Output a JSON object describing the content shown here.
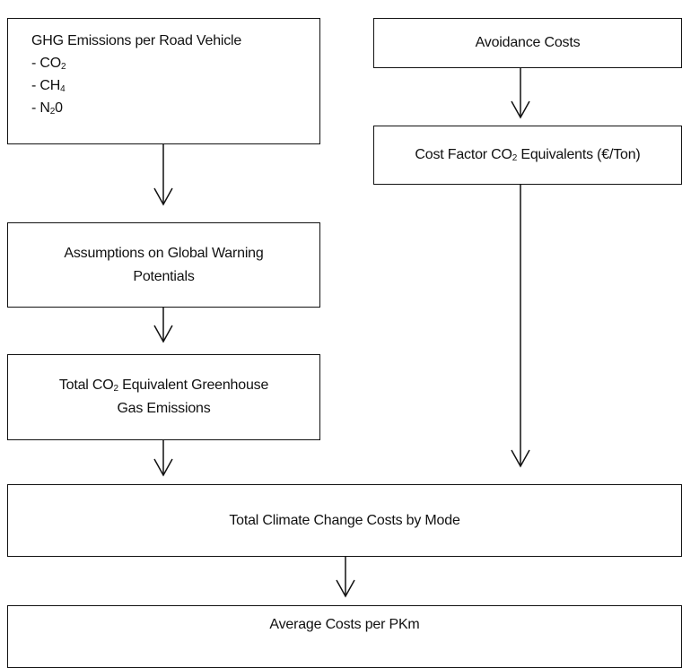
{
  "nodes": [
    {
      "lines": [
        [
          {
            "text": "GHG Emissions per Road Vehicle"
          }
        ],
        [
          {
            "text": "- CO"
          },
          {
            "sub": "2"
          }
        ],
        [
          {
            "text": "- CH"
          },
          {
            "sub": "4"
          }
        ],
        [
          {
            "text": "- N"
          },
          {
            "sub": "2"
          },
          {
            "text": "0"
          }
        ]
      ]
    },
    {
      "lines": [
        [
          {
            "text": "Avoidance Costs"
          }
        ]
      ]
    },
    {
      "lines": [
        [
          {
            "text": "Cost Factor CO"
          },
          {
            "sub": "2"
          },
          {
            "text": " Equivalents (€/Ton)"
          }
        ]
      ]
    },
    {
      "lines": [
        [
          {
            "text": "Assumptions on Global Warning"
          }
        ],
        [
          {
            "text": "Potentials"
          }
        ]
      ]
    },
    {
      "lines": [
        [
          {
            "text": "Total CO"
          },
          {
            "sub": "2"
          },
          {
            "text": " Equivalent Greenhouse"
          }
        ],
        [
          {
            "text": "Gas Emissions"
          }
        ]
      ]
    },
    {
      "lines": [
        [
          {
            "text": "Total Climate Change Costs by Mode"
          }
        ]
      ]
    },
    {
      "lines": [
        [
          {
            "text": "Average Costs per PKm"
          }
        ]
      ]
    }
  ]
}
